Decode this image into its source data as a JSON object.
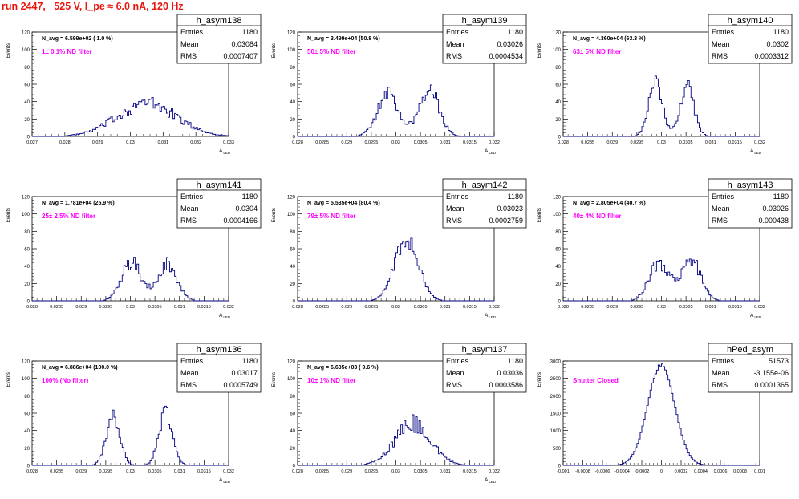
{
  "header": {
    "run_title": "run 2447,   525 V, I_pe ≈ 6.0 nA, 120 Hz"
  },
  "colors": {
    "title": "#e8160c",
    "histogram": "#000080",
    "filter_note": "#ff00ff",
    "axis": "#000000"
  },
  "chart_data": [
    {
      "type": "histogram",
      "name": "h_asym138",
      "ylabel": "Events",
      "xlabel": "A_LED",
      "xlim": [
        0.027,
        0.033
      ],
      "xticks": [
        "0.027",
        "0.028",
        "0.029",
        "0.03",
        "0.031",
        "0.032",
        "0.033"
      ],
      "ylim": [
        0,
        120
      ],
      "yticks": [
        "0",
        "20",
        "40",
        "60",
        "80",
        "100",
        "120"
      ],
      "stats": {
        "entries": "1180",
        "mean": "0.03084",
        "rms": "0.0007407"
      },
      "stats_labels": {
        "entries": "Entries",
        "mean": "Mean",
        "rms": "RMS"
      },
      "navg": "N_avg = 6.599e+02 ( 1.0 %)",
      "note": "1± 0.1% ND filter",
      "peaks": [
        {
          "mu": 0.0305,
          "sigma": 0.0009,
          "height": 38
        }
      ],
      "jagged": 0.25
    },
    {
      "type": "histogram",
      "name": "h_asym139",
      "ylabel": "Events",
      "xlabel": "A_LED",
      "xlim": [
        0.028,
        0.032
      ],
      "xticks": [
        "0.028",
        "0.0285",
        "0.029",
        "0.0295",
        "0.03",
        "0.0305",
        "0.031",
        "0.0315",
        "0.032"
      ],
      "ylim": [
        0,
        120
      ],
      "yticks": [
        "0",
        "20",
        "40",
        "60",
        "80",
        "100",
        "120"
      ],
      "stats": {
        "entries": "1180",
        "mean": "0.03026",
        "rms": "0.0004534"
      },
      "stats_labels": {
        "entries": "Entries",
        "mean": "Mean",
        "rms": "RMS"
      },
      "navg": "N_avg = 3.499e+04 (50.8 %)",
      "note": "50± 5% ND filter",
      "peaks": [
        {
          "mu": 0.02985,
          "sigma": 0.00022,
          "height": 48
        },
        {
          "mu": 0.03068,
          "sigma": 0.0002,
          "height": 56
        }
      ],
      "jagged": 0.2
    },
    {
      "type": "histogram",
      "name": "h_asym140",
      "ylabel": "Events",
      "xlabel": "A_LED",
      "xlim": [
        0.028,
        0.032
      ],
      "xticks": [
        "0.028",
        "0.0285",
        "0.029",
        "0.0295",
        "0.03",
        "0.0305",
        "0.031",
        "0.0315",
        "0.032"
      ],
      "ylim": [
        0,
        120
      ],
      "yticks": [
        "0",
        "20",
        "40",
        "60",
        "80",
        "100",
        "120"
      ],
      "stats": {
        "entries": "1180",
        "mean": "0.0302",
        "rms": "0.0003312"
      },
      "stats_labels": {
        "entries": "Entries",
        "mean": "Mean",
        "rms": "RMS"
      },
      "navg": "N_avg = 4.360e+04 (63.3 %)",
      "note": "63± 5% ND filter",
      "peaks": [
        {
          "mu": 0.02988,
          "sigma": 0.00014,
          "height": 60
        },
        {
          "mu": 0.03052,
          "sigma": 0.00014,
          "height": 58
        }
      ],
      "jagged": 0.18
    },
    {
      "type": "histogram",
      "name": "h_asym141",
      "ylabel": "Events",
      "xlabel": "A_LED",
      "xlim": [
        0.028,
        0.032
      ],
      "xticks": [
        "0.028",
        "0.0285",
        "0.029",
        "0.0295",
        "0.03",
        "0.0305",
        "0.031",
        "0.0315",
        "0.032"
      ],
      "ylim": [
        0,
        120
      ],
      "yticks": [
        "0",
        "20",
        "40",
        "60",
        "80",
        "100",
        "120"
      ],
      "stats": {
        "entries": "1180",
        "mean": "0.0304",
        "rms": "0.0004166"
      },
      "stats_labels": {
        "entries": "Entries",
        "mean": "Mean",
        "rms": "RMS"
      },
      "navg": "N_avg = 1.781e+04 (25.9 %)",
      "note": "25± 2.5% ND filter",
      "peaks": [
        {
          "mu": 0.03002,
          "sigma": 0.0002,
          "height": 44
        },
        {
          "mu": 0.03075,
          "sigma": 0.0002,
          "height": 42
        }
      ],
      "jagged": 0.2
    },
    {
      "type": "histogram",
      "name": "h_asym142",
      "ylabel": "Events",
      "xlabel": "A_LED",
      "xlim": [
        0.028,
        0.032
      ],
      "xticks": [
        "0.028",
        "0.0285",
        "0.029",
        "0.0295",
        "0.03",
        "0.0305",
        "0.031",
        "0.0315",
        "0.032"
      ],
      "ylim": [
        0,
        120
      ],
      "yticks": [
        "0",
        "20",
        "40",
        "60",
        "80",
        "100",
        "120"
      ],
      "stats": {
        "entries": "1180",
        "mean": "0.03023",
        "rms": "0.0002759"
      },
      "stats_labels": {
        "entries": "Entries",
        "mean": "Mean",
        "rms": "RMS"
      },
      "navg": "N_avg = 5.535e+04 (80.4 %)",
      "note": "79± 5% ND filter",
      "peaks": [
        {
          "mu": 0.03022,
          "sigma": 0.00024,
          "height": 72
        }
      ],
      "jagged": 0.15
    },
    {
      "type": "histogram",
      "name": "h_asym143",
      "ylabel": "Events",
      "xlabel": "A_LED",
      "xlim": [
        0.028,
        0.032
      ],
      "xticks": [
        "0.028",
        "0.0285",
        "0.029",
        "0.0295",
        "0.03",
        "0.0305",
        "0.031",
        "0.0315",
        "0.032"
      ],
      "ylim": [
        0,
        120
      ],
      "yticks": [
        "0",
        "20",
        "40",
        "60",
        "80",
        "100",
        "120"
      ],
      "stats": {
        "entries": "1180",
        "mean": "0.03026",
        "rms": "0.000438"
      },
      "stats_labels": {
        "entries": "Entries",
        "mean": "Mean",
        "rms": "RMS"
      },
      "navg": "N_avg = 2.805e+04 (40.7 %)",
      "note": "40± 4% ND filter",
      "peaks": [
        {
          "mu": 0.02995,
          "sigma": 0.0002,
          "height": 44
        },
        {
          "mu": 0.0306,
          "sigma": 0.0002,
          "height": 46
        }
      ],
      "jagged": 0.2
    },
    {
      "type": "histogram",
      "name": "h_asym136",
      "ylabel": "Events",
      "xlabel": "A_LED",
      "xlim": [
        0.028,
        0.032
      ],
      "xticks": [
        "0.028",
        "0.0285",
        "0.029",
        "0.0295",
        "0.03",
        "0.0305",
        "0.031",
        "0.0315",
        "0.032"
      ],
      "ylim": [
        0,
        120
      ],
      "yticks": [
        "0",
        "20",
        "40",
        "60",
        "80",
        "100",
        "120"
      ],
      "stats": {
        "entries": "1180",
        "mean": "0.03017",
        "rms": "0.0005749"
      },
      "stats_labels": {
        "entries": "Entries",
        "mean": "Mean",
        "rms": "RMS"
      },
      "navg": "N_avg = 6.886e+04 (100.0 %)",
      "note": "100% (No filter)",
      "peaks": [
        {
          "mu": 0.02965,
          "sigma": 0.00014,
          "height": 56
        },
        {
          "mu": 0.03072,
          "sigma": 0.00014,
          "height": 60
        }
      ],
      "jagged": 0.18
    },
    {
      "type": "histogram",
      "name": "h_asym137",
      "ylabel": "Events",
      "xlabel": "A_LED",
      "xlim": [
        0.028,
        0.032
      ],
      "xticks": [
        "0.028",
        "0.0285",
        "0.029",
        "0.0295",
        "0.03",
        "0.0305",
        "0.031",
        "0.0315",
        "0.032"
      ],
      "ylim": [
        0,
        120
      ],
      "yticks": [
        "0",
        "20",
        "40",
        "60",
        "80",
        "100",
        "120"
      ],
      "stats": {
        "entries": "1180",
        "mean": "0.03036",
        "rms": "0.0003586"
      },
      "stats_labels": {
        "entries": "Entries",
        "mean": "Mean",
        "rms": "RMS"
      },
      "navg": "N_avg = 6.605e+03 ( 9.6 %)",
      "note": "10± 1% ND filter",
      "peaks": [
        {
          "mu": 0.03035,
          "sigma": 0.00036,
          "height": 48
        }
      ],
      "jagged": 0.22
    },
    {
      "type": "histogram",
      "name": "hPed_asym",
      "ylabel": "Events",
      "xlabel": "",
      "xlim": [
        -0.001,
        0.001
      ],
      "xticks": [
        "-0.001",
        "-0.0008",
        "-0.0006",
        "-0.0004",
        "-0.0002",
        "0",
        "0.0002",
        "0.0004",
        "0.0006",
        "0.0008",
        "0.001"
      ],
      "ylim": [
        0,
        3000
      ],
      "yticks": [
        "0",
        "500",
        "1000",
        "1500",
        "2000",
        "2500",
        "3000"
      ],
      "stats": {
        "entries": "51573",
        "mean": "-3.155e-06",
        "rms": "0.0001365"
      },
      "stats_labels": {
        "entries": "Entries",
        "mean": "Mean",
        "rms": "RMS"
      },
      "navg": "",
      "note": "Shutter Closed",
      "peaks": [
        {
          "mu": -3e-06,
          "sigma": 0.0001365,
          "height": 2900
        }
      ],
      "jagged": 0.02
    }
  ]
}
